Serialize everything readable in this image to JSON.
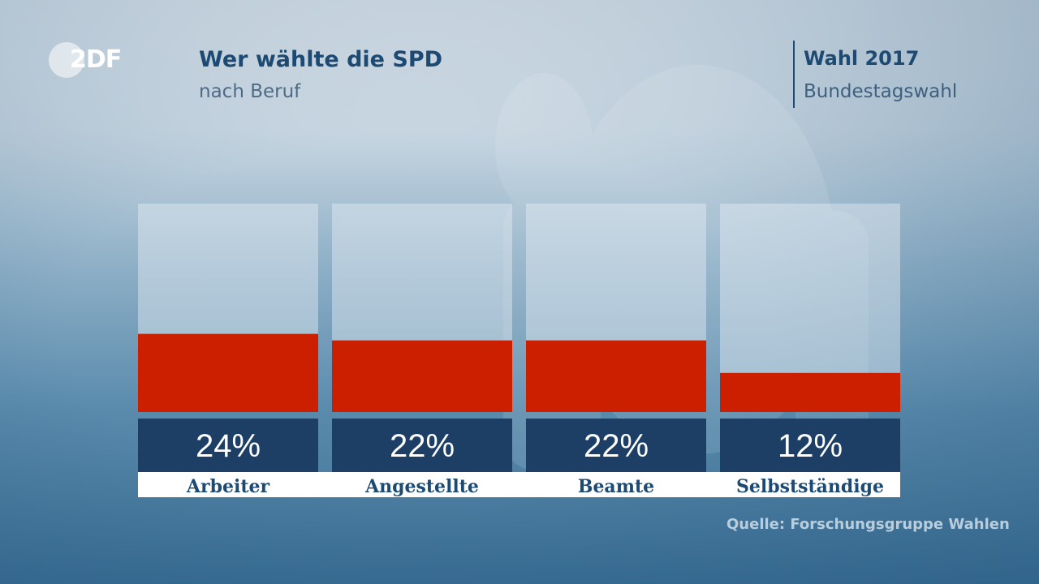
{
  "branding": {
    "logo_text": "2DF"
  },
  "header": {
    "title": "Wer wählte die SPD",
    "subtitle": "nach Beruf",
    "election_title": "Wahl 2017",
    "election_subtitle": "Bundestagswahl"
  },
  "source": "Quelle: Forschungsgruppe Wahlen",
  "colors": {
    "bar": "#cc1f00",
    "track": "#e6eef3",
    "value_box": "#1d3f66",
    "label_bg": "#ffffff",
    "label_text": "#1d4a73"
  },
  "chart_data": {
    "type": "bar",
    "title": "Wer wählte die SPD",
    "subtitle": "nach Beruf",
    "categories": [
      "Arbeiter",
      "Angestellte",
      "Beamte",
      "Selbstständige"
    ],
    "values": [
      24,
      22,
      22,
      12
    ],
    "value_labels": [
      "24%",
      "22%",
      "22%",
      "12%"
    ],
    "ylim": [
      0,
      64
    ],
    "grid": false
  }
}
